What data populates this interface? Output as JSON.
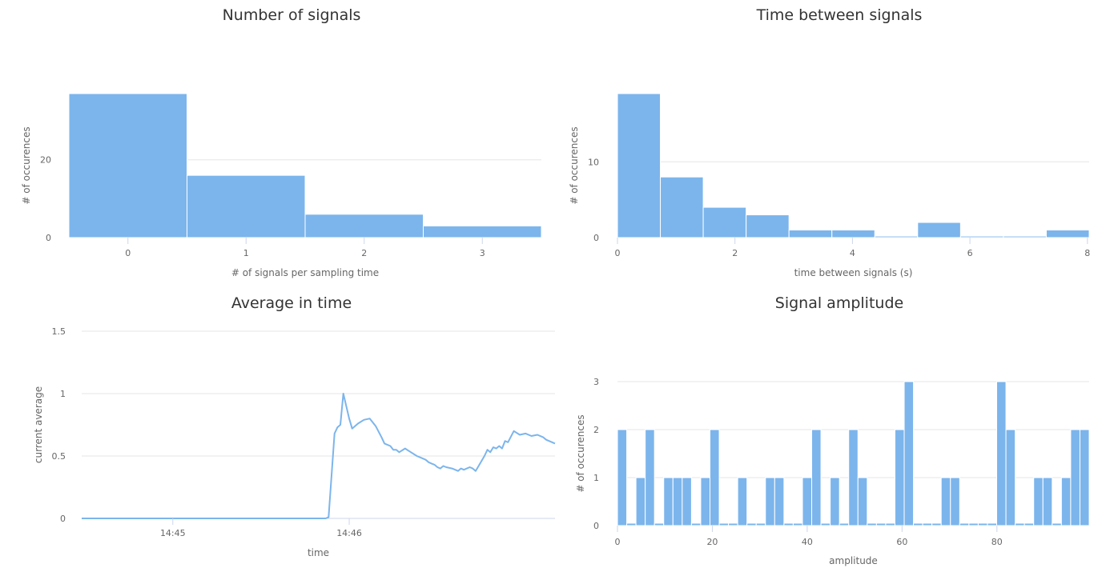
{
  "chart_data": [
    {
      "id": "number-of-signals",
      "type": "bar",
      "title": "Number of signals",
      "xlabel": "# of signals per sampling time",
      "ylabel": "# of occurences",
      "categories": [
        "0",
        "1",
        "2",
        "3"
      ],
      "values": [
        37,
        16,
        6,
        3
      ],
      "xlim": [
        -0.5,
        3.5
      ],
      "ylim": [
        0,
        37
      ],
      "yticks": [
        0,
        20
      ],
      "xticks": [
        0,
        1,
        2,
        3
      ],
      "grid": true,
      "color": "#7cb5ec"
    },
    {
      "id": "time-between-signals",
      "type": "bar",
      "title": "Time between signals",
      "xlabel": "time between signals (s)",
      "ylabel": "# of occurences",
      "bin_width": 0.73,
      "x": [
        0.365,
        1.095,
        1.825,
        2.555,
        3.285,
        4.015,
        4.745,
        5.475,
        6.205,
        6.935,
        7.665
      ],
      "values": [
        19,
        8,
        4,
        3,
        1,
        1,
        0.2,
        2,
        0.2,
        0.2,
        1
      ],
      "xlim": [
        0,
        8.03
      ],
      "ylim": [
        0,
        19
      ],
      "yticks": [
        0,
        10
      ],
      "xticks": [
        0,
        2,
        4,
        6,
        8
      ],
      "grid": true,
      "color": "#7cb5ec"
    },
    {
      "id": "average-in-time",
      "type": "line",
      "title": "Average in time",
      "xlabel": "time",
      "ylabel": "current average",
      "x": [
        "14:44:29",
        "14:45:00",
        "14:45:30",
        "14:45:52",
        "14:45:53",
        "14:45:55",
        "14:45:56",
        "14:45:57",
        "14:45:58",
        "14:46:00",
        "14:46:01",
        "14:46:03",
        "14:46:05",
        "14:46:07",
        "14:46:09",
        "14:46:11",
        "14:46:12",
        "14:46:14",
        "14:46:15",
        "14:46:16",
        "14:46:17",
        "14:46:19",
        "14:46:21",
        "14:46:23",
        "14:46:25",
        "14:46:26",
        "14:46:27",
        "14:46:28",
        "14:46:29",
        "14:46:30",
        "14:46:31",
        "14:46:32",
        "14:46:33",
        "14:46:35",
        "14:46:37",
        "14:46:38",
        "14:46:39",
        "14:46:40",
        "14:46:41",
        "14:46:42",
        "14:46:43",
        "14:46:44",
        "14:46:46",
        "14:46:47",
        "14:46:48",
        "14:46:49",
        "14:46:50",
        "14:46:51",
        "14:46:52",
        "14:46:53",
        "14:46:54",
        "14:46:56",
        "14:46:58",
        "14:47:00",
        "14:47:02",
        "14:47:04",
        "14:47:06",
        "14:47:07",
        "14:47:09",
        "14:47:10"
      ],
      "values": [
        0,
        0,
        0,
        0,
        0.01,
        0.68,
        0.73,
        0.75,
        1.0,
        0.8,
        0.72,
        0.76,
        0.79,
        0.8,
        0.74,
        0.65,
        0.6,
        0.58,
        0.55,
        0.55,
        0.53,
        0.56,
        0.53,
        0.5,
        0.48,
        0.47,
        0.45,
        0.44,
        0.43,
        0.41,
        0.4,
        0.42,
        0.41,
        0.4,
        0.38,
        0.4,
        0.39,
        0.4,
        0.41,
        0.4,
        0.38,
        0.42,
        0.5,
        0.55,
        0.53,
        0.57,
        0.56,
        0.58,
        0.56,
        0.62,
        0.61,
        0.7,
        0.67,
        0.68,
        0.66,
        0.67,
        0.65,
        0.63,
        0.61,
        0.6
      ],
      "xlim": [
        "14:44:29",
        "14:47:10"
      ],
      "ylim": [
        0,
        1.5
      ],
      "yticks": [
        0,
        0.5,
        1,
        1.5
      ],
      "xticks": [
        "14:45",
        "14:46"
      ],
      "grid": true,
      "color": "#7cb5ec"
    },
    {
      "id": "signal-amplitude",
      "type": "bar",
      "title": "Signal amplitude",
      "xlabel": "amplitude",
      "ylabel": "# of occurences",
      "bin_width": 1.95,
      "values": [
        2,
        0.05,
        1,
        2,
        0.05,
        1,
        1,
        1,
        0.05,
        1,
        2,
        0.05,
        0.05,
        1,
        0.05,
        0.05,
        1,
        1,
        0.05,
        0.05,
        1,
        2,
        0.05,
        1,
        0.05,
        2,
        1,
        0.05,
        0.05,
        0.05,
        2,
        3,
        0.05,
        0.05,
        0.05,
        1,
        1,
        0.05,
        0.05,
        0.05,
        0.05,
        3,
        2,
        0.05,
        0.05,
        1,
        1,
        0.05,
        1,
        2,
        2
      ],
      "xlim": [
        0,
        99.45
      ],
      "ylim": [
        0,
        3
      ],
      "yticks": [
        0,
        1,
        2,
        3
      ],
      "xticks": [
        0,
        20,
        40,
        60,
        80
      ],
      "grid": true,
      "color": "#7cb5ec"
    }
  ]
}
